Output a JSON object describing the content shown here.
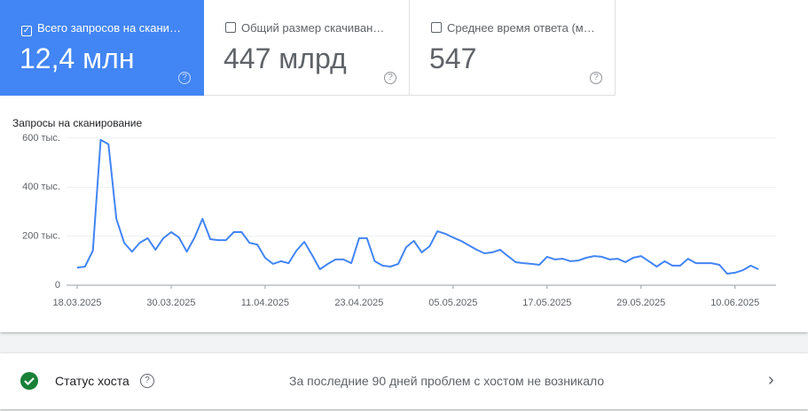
{
  "cards": [
    {
      "label": "Всего запросов на скани…",
      "value": "12,4 млн",
      "checked": true
    },
    {
      "label": "Общий размер скачиван…",
      "value": "447 млрд",
      "checked": false
    },
    {
      "label": "Среднее время ответа (м…",
      "value": "547",
      "checked": false
    }
  ],
  "chart_data": {
    "type": "line",
    "title": "Запросы на сканирование",
    "color": "#4285f4",
    "grid": true,
    "x": [
      "18.03.2025",
      "19.03.2025",
      "20.03.2025",
      "21.03.2025",
      "22.03.2025",
      "23.03.2025",
      "24.03.2025",
      "25.03.2025",
      "26.03.2025",
      "27.03.2025",
      "28.03.2025",
      "29.03.2025",
      "30.03.2025",
      "31.03.2025",
      "01.04.2025",
      "02.04.2025",
      "03.04.2025",
      "04.04.2025",
      "05.04.2025",
      "06.04.2025",
      "07.04.2025",
      "08.04.2025",
      "09.04.2025",
      "10.04.2025",
      "11.04.2025",
      "12.04.2025",
      "13.04.2025",
      "14.04.2025",
      "15.04.2025",
      "16.04.2025",
      "17.04.2025",
      "18.04.2025",
      "19.04.2025",
      "20.04.2025",
      "21.04.2025",
      "22.04.2025",
      "23.04.2025",
      "24.04.2025",
      "25.04.2025",
      "26.04.2025",
      "27.04.2025",
      "28.04.2025",
      "29.04.2025",
      "30.04.2025",
      "01.05.2025",
      "02.05.2025",
      "03.05.2025",
      "04.05.2025",
      "05.05.2025",
      "06.05.2025",
      "07.05.2025",
      "08.05.2025",
      "09.05.2025",
      "10.05.2025",
      "11.05.2025",
      "12.05.2025",
      "13.05.2025",
      "14.05.2025",
      "15.05.2025",
      "16.05.2025",
      "17.05.2025",
      "18.05.2025",
      "19.05.2025",
      "20.05.2025",
      "21.05.2025",
      "22.05.2025",
      "23.05.2025",
      "24.05.2025",
      "25.05.2025",
      "26.05.2025",
      "27.05.2025",
      "28.05.2025",
      "29.05.2025",
      "30.05.2025",
      "31.05.2025",
      "01.06.2025",
      "02.06.2025",
      "03.06.2025",
      "04.06.2025",
      "05.06.2025",
      "06.06.2025",
      "07.06.2025",
      "08.06.2025",
      "09.06.2025",
      "10.06.2025",
      "11.06.2025",
      "12.06.2025",
      "13.06.2025"
    ],
    "values": [
      72000,
      76000,
      141000,
      593000,
      575000,
      271000,
      173000,
      137000,
      173000,
      192000,
      145000,
      192000,
      217000,
      195000,
      137000,
      195000,
      271000,
      188000,
      184000,
      184000,
      217000,
      217000,
      173000,
      166000,
      112000,
      87000,
      98000,
      90000,
      141000,
      177000,
      123000,
      65000,
      87000,
      105000,
      105000,
      90000,
      192000,
      192000,
      98000,
      80000,
      76000,
      87000,
      155000,
      181000,
      134000,
      159000,
      220000,
      210000,
      195000,
      181000,
      163000,
      145000,
      130000,
      134000,
      145000,
      119000,
      94000,
      90000,
      87000,
      83000,
      116000,
      105000,
      108000,
      98000,
      101000,
      112000,
      119000,
      116000,
      105000,
      108000,
      94000,
      112000,
      119000,
      98000,
      76000,
      98000,
      80000,
      80000,
      108000,
      90000,
      90000,
      90000,
      83000,
      47000,
      51000,
      61000,
      80000,
      65000
    ],
    "ylim": [
      0,
      600000
    ],
    "yticks": [
      0,
      {
        "value": 200000,
        "label": "200 тыс."
      },
      {
        "value": 400000,
        "label": "400 тыс."
      },
      {
        "value": 600000,
        "label": "600 тыс."
      }
    ],
    "xticks": [
      "18.03.2025",
      "30.03.2025",
      "11.04.2025",
      "23.04.2025",
      "05.05.2025",
      "17.05.2025",
      "29.05.2025",
      "10.06.2025"
    ]
  },
  "status": {
    "label": "Статус хоста",
    "message": "За последние 90 дней проблем с хостом не возникало"
  }
}
